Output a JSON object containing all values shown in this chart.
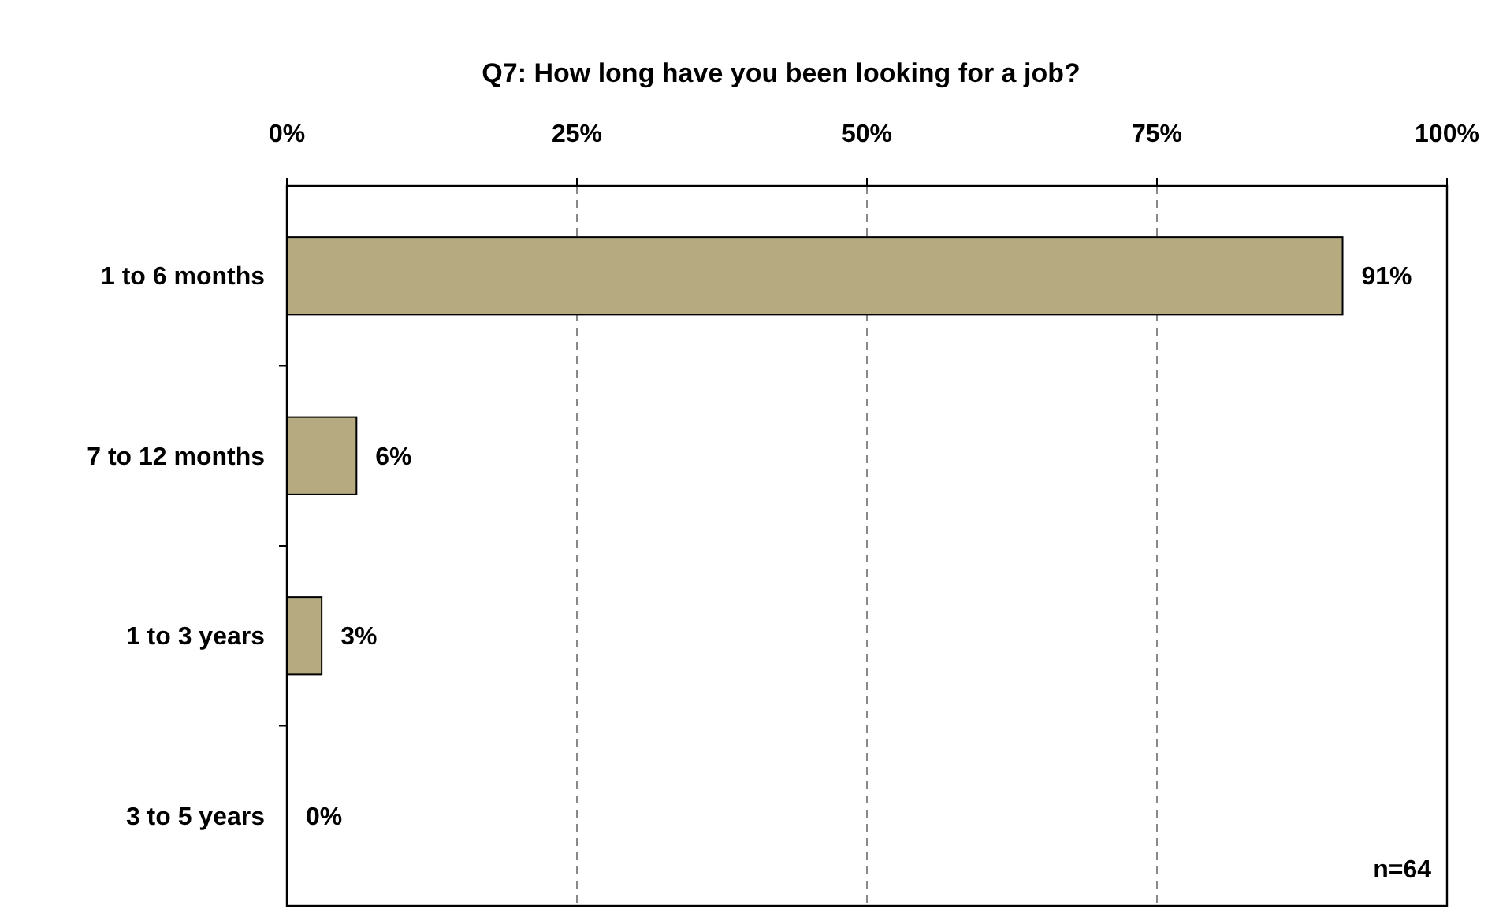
{
  "chart_data": {
    "type": "bar",
    "orientation": "horizontal",
    "title": "Q7: How long have you been looking for a job?",
    "categories": [
      "1 to 6 months",
      "7 to 12 months",
      "1 to 3 years",
      "3 to 5 years"
    ],
    "values": [
      91,
      6,
      3,
      0
    ],
    "value_labels": [
      "91%",
      "6%",
      "3%",
      "0%"
    ],
    "color": "#b5aa80",
    "xlim": [
      0,
      100
    ],
    "xticks": [
      {
        "value": 0,
        "label": "0%"
      },
      {
        "value": 25,
        "label": "25%"
      },
      {
        "value": 50,
        "label": "50%"
      },
      {
        "value": 75,
        "label": "75%"
      },
      {
        "value": 100,
        "label": "100%"
      }
    ],
    "grid": "x",
    "annotations": [
      "n=64"
    ]
  }
}
